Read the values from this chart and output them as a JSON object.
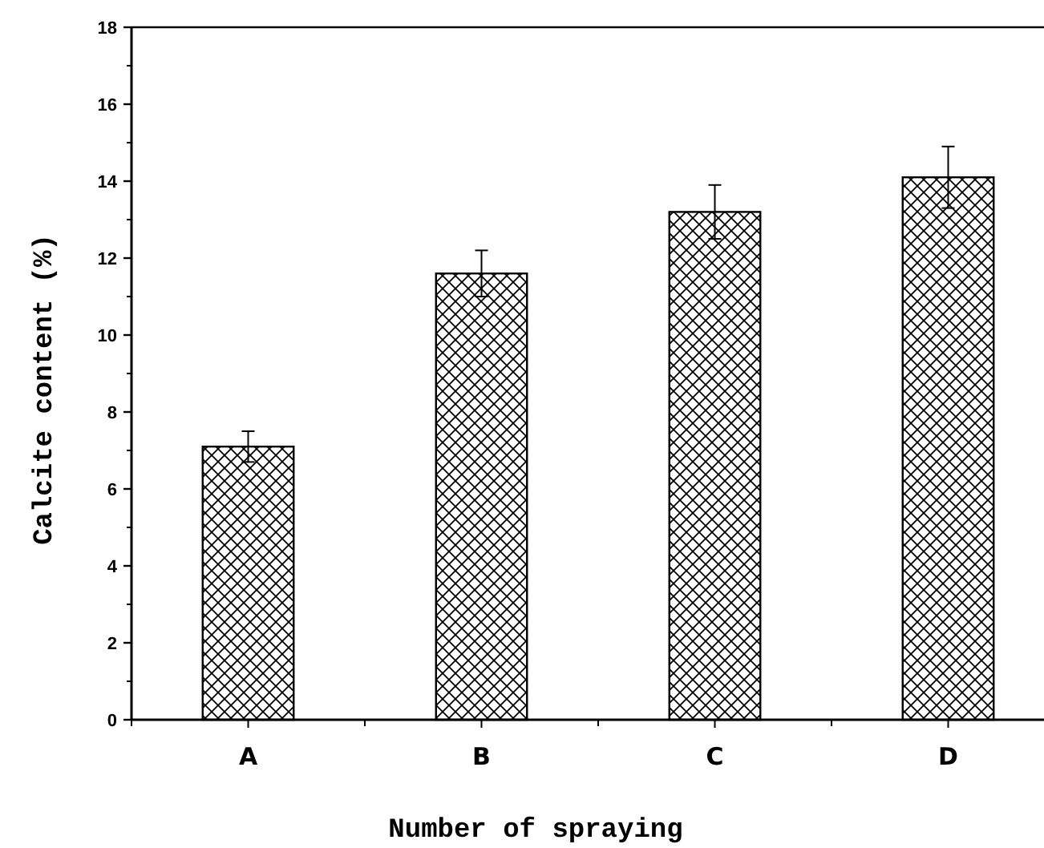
{
  "chart_data": {
    "type": "bar",
    "xlabel": "Number of spraying",
    "ylabel": "Calcite content (%)",
    "categories": [
      "A",
      "B",
      "C",
      "D"
    ],
    "values": [
      7.1,
      11.6,
      13.2,
      14.1
    ],
    "errors": [
      0.4,
      0.6,
      0.7,
      0.8
    ],
    "color": "#000000",
    "ylim": [
      0,
      18
    ],
    "yticks": [
      0,
      2,
      4,
      6,
      8,
      10,
      12,
      14,
      16,
      18
    ],
    "grid": false
  }
}
